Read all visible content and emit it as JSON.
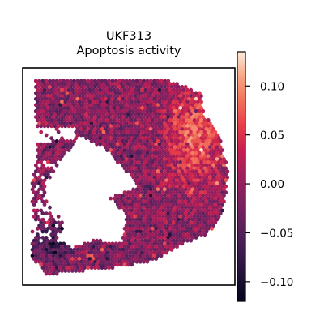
{
  "chart_data": {
    "type": "scatter",
    "title_line1": "UKF313",
    "title_line2": "Apoptosis activity",
    "xlabel": "",
    "ylabel": "",
    "grid": false,
    "legend": "colorbar-right",
    "colormap": "rocket",
    "colorbar": {
      "range": [
        -0.12,
        0.135
      ],
      "ticks": [
        0.1,
        0.05,
        0.0,
        -0.05,
        -0.1
      ],
      "tick_labels": [
        "0.10",
        "0.05",
        "0.00",
        "−0.05",
        "−0.10"
      ]
    },
    "spot_value_range": [
      -0.12,
      0.135
    ],
    "colors": {
      "low": "#03051A",
      "mid": "#CB1B4F",
      "high": "#FAEBDD"
    }
  }
}
